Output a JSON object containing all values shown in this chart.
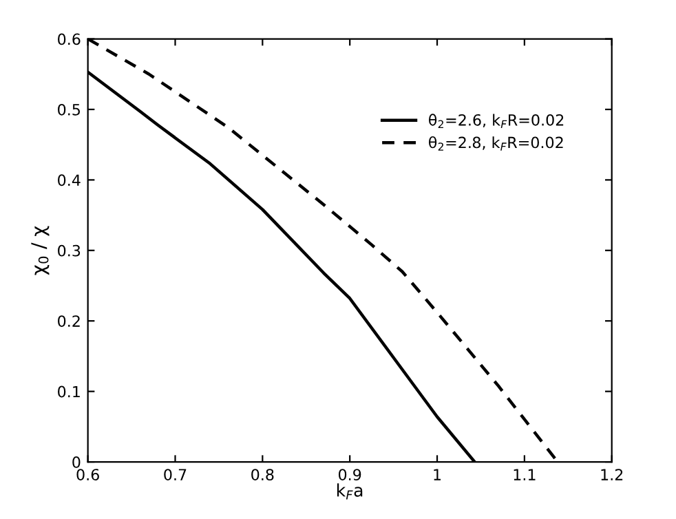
{
  "chart_data": {
    "type": "line",
    "xlabel": "k$_{F}$a",
    "ylabel": "χ$_{0}$ / χ",
    "xlim": [
      0.6,
      1.2
    ],
    "xticks": [
      0.6,
      0.7,
      0.8,
      0.9,
      1,
      1.1,
      1.2
    ],
    "ylim": [
      0,
      0.6
    ],
    "yticks": [
      0,
      0.1,
      0.2,
      0.3,
      0.4,
      0.5,
      0.6
    ],
    "grid": false,
    "legend": "top right",
    "marker": "none",
    "series": [
      {
        "name": "θ$_{2}$=2.6, k$_{F}$R=0.02",
        "color": "#000000",
        "line_style": "solid",
        "x": [
          0.6,
          0.66,
          0.68,
          0.74,
          0.8,
          0.87,
          0.9,
          0.95,
          1.0,
          1.043
        ],
        "values": [
          0.553,
          0.497,
          0.478,
          0.423,
          0.358,
          0.268,
          0.232,
          0.148,
          0.064,
          0
        ]
      },
      {
        "name": "θ$_{2}$=2.8, k$_{F}$R=0.02",
        "color": "#000000",
        "line_style": "dashed",
        "x": [
          0.6,
          0.67,
          0.76,
          0.87,
          0.925,
          0.96,
          1.0,
          1.07,
          1.138
        ],
        "values": [
          0.6,
          0.55,
          0.475,
          0.365,
          0.308,
          0.27,
          0.212,
          0.108,
          0
        ]
      }
    ]
  }
}
